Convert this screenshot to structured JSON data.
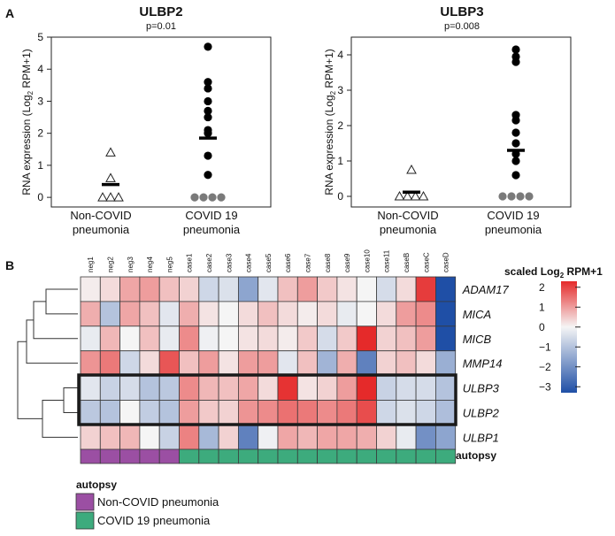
{
  "panel_a_label": "A",
  "panel_b_label": "B",
  "chart_data": [
    {
      "type": "scatter",
      "title": "ULBP2",
      "subtitle": "p=0.01",
      "ylabel": "RNA expression (Log2 RPM+1)",
      "ylim": [
        -0.3,
        5
      ],
      "yticks": [
        0,
        1,
        2,
        3,
        4,
        5
      ],
      "categories": [
        "Non-COVID\npneumonia",
        "COVID 19\npneumonia"
      ],
      "groups": [
        {
          "name": "Non-COVID pneumonia",
          "marker": "triangle",
          "values": [
            1.4,
            0.6,
            0,
            0,
            0
          ],
          "mean": 0.4
        },
        {
          "name": "COVID 19 pneumonia",
          "marker": "circle",
          "values": [
            4.7,
            3.6,
            3.4,
            3.0,
            2.7,
            2.5,
            2.1,
            2.0,
            1.3,
            0.7,
            0,
            0,
            0,
            0
          ],
          "mean": 1.85
        }
      ]
    },
    {
      "type": "scatter",
      "title": "ULBP3",
      "subtitle": "p=0.008",
      "ylabel": "RNA expression (Log2 RPM+1)",
      "ylim": [
        -0.3,
        4.5
      ],
      "yticks": [
        0,
        1,
        2,
        3,
        4
      ],
      "categories": [
        "Non-COVID\npneumonia",
        "COVID 19\npneumonia"
      ],
      "groups": [
        {
          "name": "Non-COVID pneumonia",
          "marker": "triangle",
          "values": [
            0.75,
            0,
            0,
            0,
            0
          ],
          "mean": 0.12
        },
        {
          "name": "COVID 19 pneumonia",
          "marker": "circle",
          "values": [
            4.15,
            3.95,
            3.8,
            2.3,
            2.15,
            1.8,
            1.5,
            1.2,
            1.0,
            0.6,
            0,
            0,
            0,
            0
          ],
          "mean": 1.3
        }
      ]
    },
    {
      "type": "heatmap",
      "columns": [
        "neg1",
        "neg2",
        "neg3",
        "neg4",
        "neg5",
        "case1",
        "case2",
        "case3",
        "case4",
        "case5",
        "case6",
        "case7",
        "case8",
        "case9",
        "case10",
        "case11",
        "caseB",
        "caseC",
        "caseD"
      ],
      "rows": [
        "ADAM17",
        "MICA",
        "MICB",
        "MMP14",
        "ULBP3",
        "ULBP2",
        "ULBP1"
      ],
      "values": [
        [
          0.1,
          0.3,
          0.9,
          1.0,
          0.6,
          0.4,
          -0.6,
          -0.4,
          -1.6,
          -0.3,
          0.6,
          1.0,
          0.5,
          0.2,
          0.0,
          -0.5,
          0.3,
          2.1,
          -3.3
        ],
        [
          0.8,
          -1.0,
          0.9,
          0.6,
          -0.3,
          0.8,
          0.2,
          0.0,
          0.3,
          0.6,
          0.3,
          0.1,
          0.3,
          -0.2,
          0.0,
          0.3,
          1.0,
          1.2,
          -3.3
        ],
        [
          -0.2,
          0.7,
          0.0,
          0.6,
          -0.2,
          1.2,
          -0.1,
          0.0,
          0.2,
          0.3,
          0.1,
          0.5,
          -0.5,
          0.5,
          2.3,
          0.4,
          0.6,
          1.0,
          -3.3
        ],
        [
          1.1,
          1.4,
          -0.6,
          0.3,
          1.8,
          0.6,
          1.0,
          0.2,
          1.0,
          1.0,
          -0.3,
          0.6,
          -1.3,
          0.8,
          -2.3,
          0.4,
          0.6,
          0.3,
          -1.4
        ],
        [
          -0.3,
          -0.7,
          -0.5,
          -1.0,
          -0.9,
          1.2,
          0.7,
          0.6,
          0.9,
          0.3,
          2.2,
          0.2,
          0.4,
          1.0,
          2.3,
          -0.7,
          -0.5,
          -0.5,
          -1.0
        ],
        [
          -0.9,
          -1.0,
          0.0,
          -0.8,
          -1.0,
          1.0,
          0.5,
          0.4,
          1.1,
          1.2,
          1.5,
          1.4,
          1.2,
          1.4,
          1.9,
          -0.6,
          -0.4,
          -0.6,
          -1.1
        ],
        [
          0.4,
          0.6,
          0.7,
          0.0,
          -0.7,
          1.3,
          -1.2,
          0.4,
          -2.3,
          -0.1,
          0.9,
          0.7,
          0.9,
          0.9,
          0.8,
          0.4,
          -0.2,
          -2.0,
          -1.6
        ]
      ],
      "annotation_label": "autopsy",
      "annotation": [
        "Non-COVID pneumonia",
        "Non-COVID pneumonia",
        "Non-COVID pneumonia",
        "Non-COVID pneumonia",
        "Non-COVID pneumonia",
        "COVID 19 pneumonia",
        "COVID 19 pneumonia",
        "COVID 19 pneumonia",
        "COVID 19 pneumonia",
        "COVID 19 pneumonia",
        "COVID 19 pneumonia",
        "COVID 19 pneumonia",
        "COVID 19 pneumonia",
        "COVID 19 pneumonia",
        "COVID 19 pneumonia",
        "COVID 19 pneumonia",
        "COVID 19 pneumonia",
        "COVID 19 pneumonia",
        "COVID 19 pneumonia"
      ],
      "highlighted_rows": [
        "ULBP3",
        "ULBP2"
      ],
      "colorbar": {
        "title_prefix": "scaled Log",
        "title_sub": "2",
        "title_suffix": " RPM+1",
        "min": -3.3,
        "max": 2.3,
        "ticks": [
          2,
          1,
          0,
          -1,
          -2,
          -3
        ],
        "tick_labels": [
          "2",
          "1",
          "0",
          "−1",
          "−2",
          "−3"
        ]
      },
      "legend": {
        "title": "autopsy",
        "items": [
          {
            "label": "Non-COVID pneumonia",
            "color": "#9b4fa3"
          },
          {
            "label": "COVID 19 pneumonia",
            "color": "#3dab7d"
          }
        ]
      },
      "colors": {
        "low": "#1f4fa6",
        "mid": "#f5f5f5",
        "high": "#e52a2a"
      }
    }
  ]
}
